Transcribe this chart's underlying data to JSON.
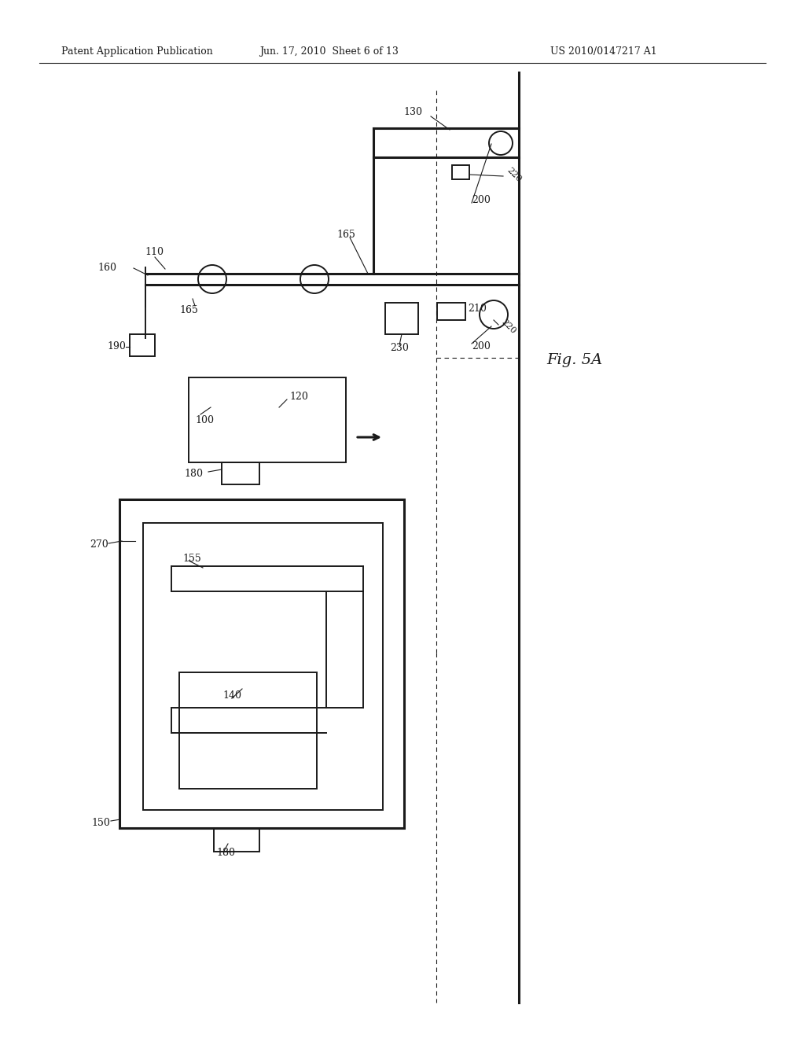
{
  "bg_color": "#ffffff",
  "line_color": "#1a1a1a",
  "header1": "Patent Application Publication",
  "header2": "Jun. 17, 2010  Sheet 6 of 13",
  "header3": "US 2010/0147217 A1",
  "fig_label": "Fig. 5A",
  "lw": 1.4,
  "lw_thick": 2.2,
  "lw_thin": 0.8
}
